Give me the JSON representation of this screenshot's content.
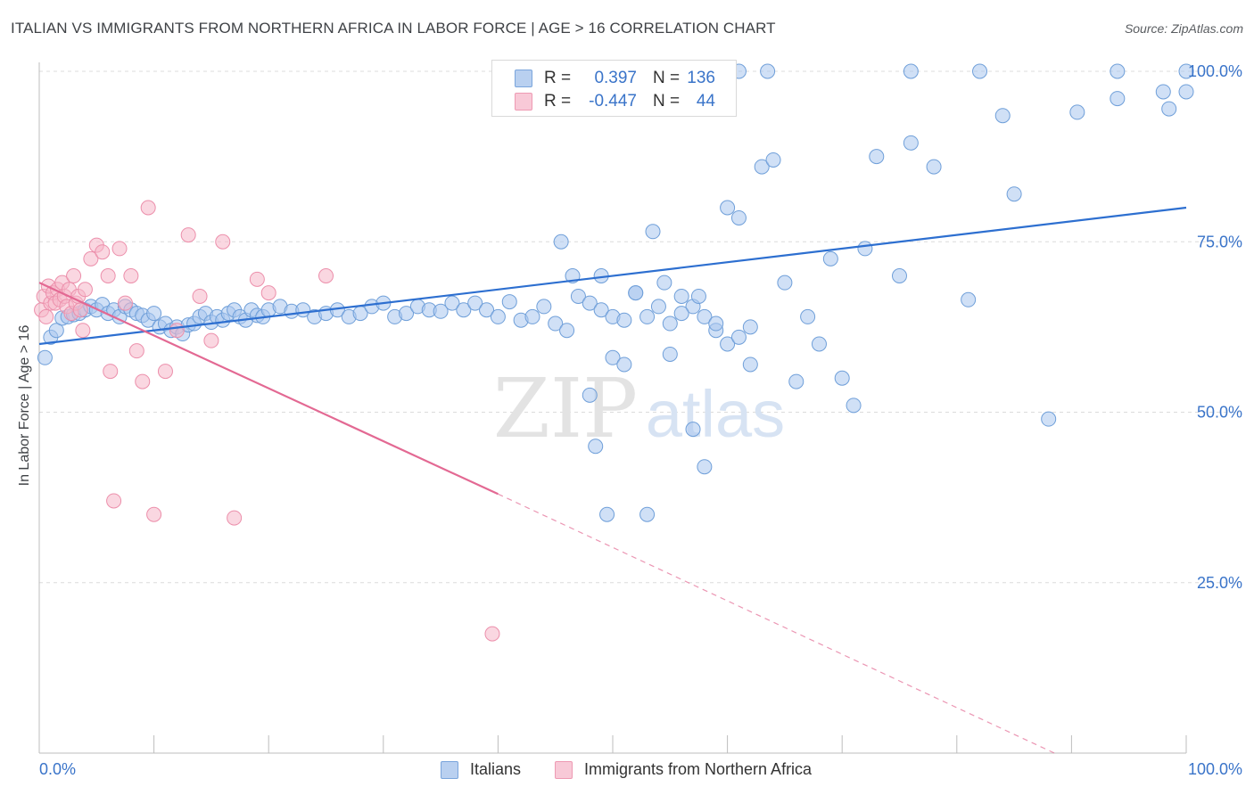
{
  "header": {
    "title": "ITALIAN VS IMMIGRANTS FROM NORTHERN AFRICA IN LABOR FORCE | AGE > 16 CORRELATION CHART",
    "source": "Source: ZipAtlas.com"
  },
  "watermark": {
    "zip": "ZIP",
    "atlas": "atlas"
  },
  "legend": {
    "r_label": "R =",
    "n_label": "N =",
    "rows": [
      {
        "r": "0.397",
        "n": "136"
      },
      {
        "r": "-0.447",
        "n": "44"
      }
    ]
  },
  "colors": {
    "blue_fill": "#a9c6ee",
    "blue_stroke": "#6f9fd9",
    "blue_line": "#2d6fd0",
    "blue_text": "#3a74c9",
    "pink_fill": "#f6b7c9",
    "pink_stroke": "#ec8fab",
    "pink_line": "#e36993",
    "pink_text": "#e0507f",
    "grid": "#dcdcdc",
    "axis_text": "#3a74c9"
  },
  "chart_data": {
    "type": "scatter",
    "title": "ITALIAN VS IMMIGRANTS FROM NORTHERN AFRICA IN LABOR FORCE | AGE > 16 CORRELATION CHART",
    "xlabel": "",
    "ylabel": "In Labor Force | Age > 16",
    "xlim": [
      0,
      100
    ],
    "ylim": [
      0,
      102
    ],
    "x_ticks": [
      "0.0%",
      "100.0%"
    ],
    "y_ticks": [
      {
        "value": 25,
        "label": "25.0%"
      },
      {
        "value": 50,
        "label": "50.0%"
      },
      {
        "value": 75,
        "label": "75.0%"
      },
      {
        "value": 100,
        "label": "100.0%"
      }
    ],
    "grid": "horizontal dashed",
    "legend_position": "top-center and bottom",
    "series": [
      {
        "name": "Italians",
        "color": "blue",
        "r": 0.397,
        "n": 136,
        "trend": {
          "x": [
            0,
            100
          ],
          "y": [
            60.0,
            80.0
          ]
        },
        "points": [
          [
            0.5,
            58.0
          ],
          [
            1.0,
            61.0
          ],
          [
            1.5,
            62.0
          ],
          [
            2.0,
            63.8
          ],
          [
            2.5,
            64.0
          ],
          [
            3.0,
            64.3
          ],
          [
            3.5,
            64.5
          ],
          [
            4.0,
            65.0
          ],
          [
            4.5,
            65.5
          ],
          [
            5.0,
            65.0
          ],
          [
            5.5,
            65.8
          ],
          [
            6.0,
            64.5
          ],
          [
            6.5,
            65.0
          ],
          [
            7.0,
            64.0
          ],
          [
            7.5,
            65.5
          ],
          [
            8.0,
            65.0
          ],
          [
            8.5,
            64.5
          ],
          [
            9.0,
            64.2
          ],
          [
            9.5,
            63.5
          ],
          [
            10.0,
            64.5
          ],
          [
            10.5,
            62.5
          ],
          [
            11.0,
            63.0
          ],
          [
            11.5,
            62.0
          ],
          [
            12.0,
            62.5
          ],
          [
            12.5,
            61.5
          ],
          [
            13.0,
            62.8
          ],
          [
            13.5,
            63.0
          ],
          [
            14.0,
            64.0
          ],
          [
            14.5,
            64.5
          ],
          [
            15.0,
            63.2
          ],
          [
            15.5,
            64.0
          ],
          [
            16.0,
            63.5
          ],
          [
            16.5,
            64.5
          ],
          [
            17.0,
            65.0
          ],
          [
            17.5,
            64.0
          ],
          [
            18.0,
            63.5
          ],
          [
            18.5,
            65.0
          ],
          [
            19.0,
            64.2
          ],
          [
            19.5,
            64.0
          ],
          [
            20.0,
            65.0
          ],
          [
            21.0,
            65.5
          ],
          [
            22.0,
            64.8
          ],
          [
            23.0,
            65.0
          ],
          [
            24.0,
            64.0
          ],
          [
            25.0,
            64.5
          ],
          [
            26.0,
            65.0
          ],
          [
            27.0,
            64.0
          ],
          [
            28.0,
            64.5
          ],
          [
            29.0,
            65.5
          ],
          [
            30.0,
            66.0
          ],
          [
            31.0,
            64.0
          ],
          [
            32.0,
            64.5
          ],
          [
            33.0,
            65.5
          ],
          [
            34.0,
            65.0
          ],
          [
            35.0,
            64.8
          ],
          [
            36.0,
            66.0
          ],
          [
            37.0,
            65.0
          ],
          [
            38.0,
            66.0
          ],
          [
            39.0,
            65.0
          ],
          [
            40.0,
            64.0
          ],
          [
            41.0,
            66.2
          ],
          [
            42.0,
            63.5
          ],
          [
            43.0,
            64.0
          ],
          [
            44.0,
            65.5
          ],
          [
            45.0,
            63.0
          ],
          [
            46.0,
            62.0
          ],
          [
            47.0,
            67.0
          ],
          [
            48.0,
            66.0
          ],
          [
            49.0,
            65.0
          ],
          [
            50.0,
            64.0
          ],
          [
            51.0,
            63.5
          ],
          [
            52.0,
            67.5
          ],
          [
            53.0,
            64.0
          ],
          [
            54.0,
            65.5
          ],
          [
            55.0,
            63.0
          ],
          [
            56.0,
            67.0
          ],
          [
            57.0,
            65.5
          ],
          [
            58.0,
            64.0
          ],
          [
            59.0,
            62.0
          ],
          [
            60.0,
            60.0
          ],
          [
            61.0,
            61.0
          ],
          [
            62.0,
            62.5
          ],
          [
            45.5,
            75.0
          ],
          [
            46.5,
            70.0
          ],
          [
            48.0,
            52.5
          ],
          [
            48.5,
            45.0
          ],
          [
            49.0,
            70.0
          ],
          [
            49.5,
            35.0
          ],
          [
            50.0,
            58.0
          ],
          [
            51.0,
            57.0
          ],
          [
            52.0,
            67.5
          ],
          [
            53.0,
            35.0
          ],
          [
            53.5,
            76.5
          ],
          [
            54.5,
            69.0
          ],
          [
            55.0,
            58.5
          ],
          [
            56.0,
            64.5
          ],
          [
            57.0,
            47.5
          ],
          [
            57.5,
            67.0
          ],
          [
            58.0,
            42.0
          ],
          [
            59.0,
            63.0
          ],
          [
            60.0,
            80.0
          ],
          [
            61.0,
            78.5
          ],
          [
            62.0,
            57.0
          ],
          [
            63.0,
            86.0
          ],
          [
            64.0,
            87.0
          ],
          [
            65.0,
            69.0
          ],
          [
            66.0,
            54.5
          ],
          [
            67.0,
            64.0
          ],
          [
            68.0,
            60.0
          ],
          [
            69.0,
            72.5
          ],
          [
            70.0,
            55.0
          ],
          [
            71.0,
            51.0
          ],
          [
            72.0,
            74.0
          ],
          [
            73.0,
            87.5
          ],
          [
            75.0,
            70.0
          ],
          [
            76.0,
            89.5
          ],
          [
            78.0,
            86.0
          ],
          [
            81.0,
            66.5
          ],
          [
            84.0,
            93.5
          ],
          [
            85.0,
            82.0
          ],
          [
            88.0,
            49.0
          ],
          [
            90.5,
            94.0
          ],
          [
            94.0,
            96.0
          ],
          [
            98.0,
            97.0
          ],
          [
            98.5,
            94.5
          ],
          [
            100.0,
            97.0
          ],
          [
            51.0,
            100.0
          ],
          [
            56.0,
            100.0
          ],
          [
            59.0,
            100.0
          ],
          [
            61.0,
            100.0
          ],
          [
            63.5,
            100.0
          ],
          [
            76.0,
            100.0
          ],
          [
            82.0,
            100.0
          ],
          [
            94.0,
            100.0
          ],
          [
            100.0,
            100.0
          ]
        ]
      },
      {
        "name": "Immigrants from Northern Africa",
        "color": "pink",
        "r": -0.447,
        "n": 44,
        "trend_solid": {
          "x": [
            0,
            40
          ],
          "y": [
            69.0,
            38.0
          ]
        },
        "trend_dashed": {
          "x": [
            40,
            100
          ],
          "y": [
            38.0,
            -9.0
          ]
        },
        "points": [
          [
            0.2,
            65.0
          ],
          [
            0.4,
            67.0
          ],
          [
            0.6,
            64.0
          ],
          [
            0.8,
            68.5
          ],
          [
            1.0,
            66.0
          ],
          [
            1.2,
            67.5
          ],
          [
            1.4,
            66.0
          ],
          [
            1.6,
            68.0
          ],
          [
            1.8,
            66.5
          ],
          [
            2.0,
            69.0
          ],
          [
            2.2,
            67.0
          ],
          [
            2.4,
            65.5
          ],
          [
            2.6,
            68.0
          ],
          [
            2.8,
            64.5
          ],
          [
            3.0,
            70.0
          ],
          [
            3.2,
            66.0
          ],
          [
            3.4,
            67.0
          ],
          [
            3.6,
            65.0
          ],
          [
            3.8,
            62.0
          ],
          [
            4.0,
            68.0
          ],
          [
            4.5,
            72.5
          ],
          [
            5.0,
            74.5
          ],
          [
            5.5,
            73.5
          ],
          [
            6.0,
            70.0
          ],
          [
            6.2,
            56.0
          ],
          [
            6.5,
            37.0
          ],
          [
            7.0,
            74.0
          ],
          [
            7.5,
            66.0
          ],
          [
            8.0,
            70.0
          ],
          [
            8.5,
            59.0
          ],
          [
            9.0,
            54.5
          ],
          [
            9.5,
            80.0
          ],
          [
            10.0,
            35.0
          ],
          [
            11.0,
            56.0
          ],
          [
            12.0,
            62.0
          ],
          [
            13.0,
            76.0
          ],
          [
            14.0,
            67.0
          ],
          [
            15.0,
            60.5
          ],
          [
            16.0,
            75.0
          ],
          [
            17.0,
            34.5
          ],
          [
            19.0,
            69.5
          ],
          [
            20.0,
            67.5
          ],
          [
            25.0,
            70.0
          ],
          [
            39.5,
            17.5
          ]
        ]
      }
    ]
  },
  "bottom_legend": [
    {
      "label": "Italians"
    },
    {
      "label": "Immigrants from Northern Africa"
    }
  ]
}
